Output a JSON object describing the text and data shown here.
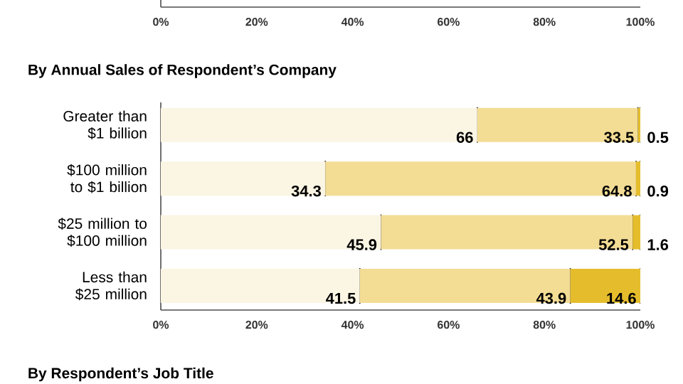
{
  "chart_data": {
    "type": "bar",
    "orientation": "horizontal",
    "stacked": true,
    "title": "By Annual Sales of Respondent’s Company",
    "categories": [
      "Greater than $1 billion",
      "$100 million to $1 billion",
      "$25 million to $100 million",
      "Less than $25 million"
    ],
    "series": [
      {
        "color": "#fbf5e3",
        "values": [
          66,
          34.3,
          45.9,
          41.5
        ]
      },
      {
        "color": "#f3dc94",
        "values": [
          33.5,
          64.8,
          52.5,
          43.9
        ]
      },
      {
        "color": "#e5bd2c",
        "values": [
          0.5,
          0.9,
          1.6,
          14.6
        ]
      }
    ],
    "xlim": [
      0,
      100
    ],
    "xticks": [
      {
        "value": 0,
        "label": "0%"
      },
      {
        "value": 20,
        "label": "20%"
      },
      {
        "value": 40,
        "label": "40%"
      },
      {
        "value": 60,
        "label": "60%"
      },
      {
        "value": 80,
        "label": "80%"
      },
      {
        "value": 100,
        "label": "100%"
      }
    ],
    "x2lim": [
      0,
      100
    ],
    "x2ticks": [
      {
        "value": 0,
        "label": "0%"
      },
      {
        "value": 20,
        "label": "20%"
      },
      {
        "value": 40,
        "label": "40%"
      },
      {
        "value": 60,
        "label": "60%"
      },
      {
        "value": 80,
        "label": "80%"
      },
      {
        "value": 100,
        "label": "100%"
      }
    ],
    "data_labels": true,
    "annotations": [
      "By Respondent’s Job Title"
    ]
  }
}
